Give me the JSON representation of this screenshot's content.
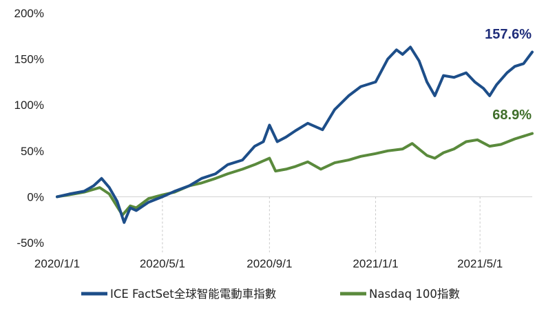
{
  "chart_data": {
    "type": "line",
    "title": "",
    "xlabel": "",
    "ylabel": "",
    "ylim": [
      -50,
      200
    ],
    "y_ticks": [
      "200%",
      "150%",
      "100%",
      "50%",
      "0%",
      "-50%"
    ],
    "y_tick_values": [
      200,
      150,
      100,
      50,
      0,
      -50
    ],
    "x_ticks": [
      "2020/1/1",
      "2020/5/1",
      "2020/9/1",
      "2021/1/1",
      "2021/5/1"
    ],
    "x_range": [
      "2020/1/1",
      "2021/6/30"
    ],
    "grid": "vertical dashed at x ticks",
    "legend_position": "bottom",
    "series": [
      {
        "name": "ICE FactSet全球智能電動車指數",
        "color": "#1d4e89",
        "end_label": "157.6%",
        "end_label_color": "#1f2d7a",
        "points": [
          [
            "2020/1/1",
            0
          ],
          [
            "2020/1/15",
            3
          ],
          [
            "2020/2/1",
            6
          ],
          [
            "2020/2/12",
            12
          ],
          [
            "2020/2/21",
            20
          ],
          [
            "2020/3/1",
            10
          ],
          [
            "2020/3/10",
            -5
          ],
          [
            "2020/3/18",
            -28
          ],
          [
            "2020/3/25",
            -12
          ],
          [
            "2020/4/1",
            -15
          ],
          [
            "2020/4/15",
            -6
          ],
          [
            "2020/5/1",
            0
          ],
          [
            "2020/5/15",
            6
          ],
          [
            "2020/6/1",
            12
          ],
          [
            "2020/6/15",
            20
          ],
          [
            "2020/7/1",
            25
          ],
          [
            "2020/7/15",
            35
          ],
          [
            "2020/8/1",
            40
          ],
          [
            "2020/8/15",
            55
          ],
          [
            "2020/8/25",
            60
          ],
          [
            "2020/9/1",
            78
          ],
          [
            "2020/9/10",
            60
          ],
          [
            "2020/9/20",
            65
          ],
          [
            "2020/10/1",
            72
          ],
          [
            "2020/10/15",
            80
          ],
          [
            "2020/11/1",
            73
          ],
          [
            "2020/11/15",
            95
          ],
          [
            "2020/12/1",
            110
          ],
          [
            "2020/12/15",
            120
          ],
          [
            "2021/1/1",
            125
          ],
          [
            "2021/1/15",
            150
          ],
          [
            "2021/1/25",
            160
          ],
          [
            "2021/2/1",
            155
          ],
          [
            "2021/2/10",
            163
          ],
          [
            "2021/2/20",
            148
          ],
          [
            "2021/3/1",
            125
          ],
          [
            "2021/3/10",
            110
          ],
          [
            "2021/3/20",
            132
          ],
          [
            "2021/4/1",
            130
          ],
          [
            "2021/4/15",
            135
          ],
          [
            "2021/4/25",
            125
          ],
          [
            "2021/5/5",
            118
          ],
          [
            "2021/5/12",
            110
          ],
          [
            "2021/5/20",
            122
          ],
          [
            "2021/6/1",
            135
          ],
          [
            "2021/6/10",
            142
          ],
          [
            "2021/6/20",
            145
          ],
          [
            "2021/6/30",
            157.6
          ]
        ]
      },
      {
        "name": "Nasdaq 100指數",
        "color": "#5a8a3c",
        "end_label": "68.9%",
        "end_label_color": "#3f6e2a",
        "points": [
          [
            "2020/1/1",
            0
          ],
          [
            "2020/1/20",
            3
          ],
          [
            "2020/2/1",
            5
          ],
          [
            "2020/2/19",
            10
          ],
          [
            "2020/3/1",
            3
          ],
          [
            "2020/3/16",
            -20
          ],
          [
            "2020/3/25",
            -10
          ],
          [
            "2020/4/1",
            -12
          ],
          [
            "2020/4/15",
            -2
          ],
          [
            "2020/5/1",
            2
          ],
          [
            "2020/5/15",
            5
          ],
          [
            "2020/6/1",
            12
          ],
          [
            "2020/6/15",
            15
          ],
          [
            "2020/7/1",
            20
          ],
          [
            "2020/7/15",
            25
          ],
          [
            "2020/8/1",
            30
          ],
          [
            "2020/8/15",
            35
          ],
          [
            "2020/9/1",
            42
          ],
          [
            "2020/9/8",
            28
          ],
          [
            "2020/9/20",
            30
          ],
          [
            "2020/10/1",
            33
          ],
          [
            "2020/10/15",
            38
          ],
          [
            "2020/10/30",
            30
          ],
          [
            "2020/11/15",
            37
          ],
          [
            "2020/12/1",
            40
          ],
          [
            "2020/12/15",
            44
          ],
          [
            "2021/1/1",
            47
          ],
          [
            "2021/1/15",
            50
          ],
          [
            "2021/2/1",
            52
          ],
          [
            "2021/2/12",
            58
          ],
          [
            "2021/3/1",
            45
          ],
          [
            "2021/3/10",
            42
          ],
          [
            "2021/3/20",
            48
          ],
          [
            "2021/4/1",
            52
          ],
          [
            "2021/4/15",
            60
          ],
          [
            "2021/4/28",
            62
          ],
          [
            "2021/5/12",
            55
          ],
          [
            "2021/5/25",
            57
          ],
          [
            "2021/6/10",
            63
          ],
          [
            "2021/6/30",
            68.9
          ]
        ]
      }
    ]
  }
}
